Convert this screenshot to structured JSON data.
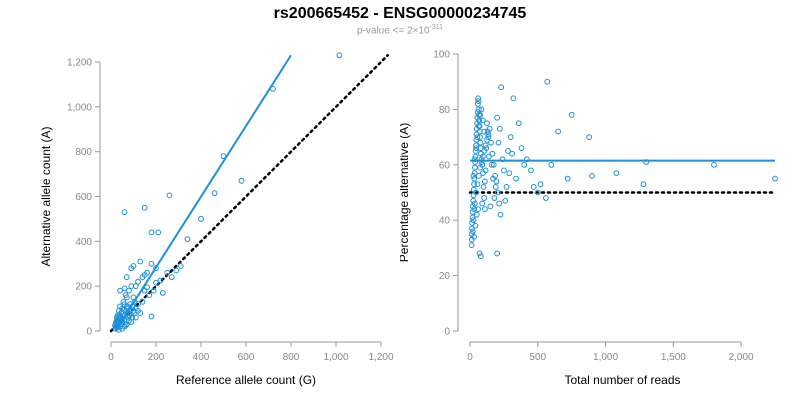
{
  "title": "rs200665452 - ENSG00000234745",
  "subtitle": {
    "prefix": "p-value <= 2×10",
    "exponent": "-311"
  },
  "colors": {
    "points": "#1e90d8",
    "fit_line": "#1e90d8",
    "reference_line": "#000000",
    "axis": "#999999"
  },
  "chart_data": [
    {
      "type": "scatter",
      "xlabel": "Reference allele count (G)",
      "ylabel": "Alternative allele count (A)",
      "xlim": [
        0,
        1200
      ],
      "ylim": [
        0,
        1200
      ],
      "xticks": [
        0,
        200,
        400,
        600,
        800,
        1000,
        1200
      ],
      "yticks": [
        0,
        200,
        400,
        600,
        800,
        1000,
        1200
      ],
      "xtick_labels": [
        "0",
        "200",
        "400",
        "600",
        "800",
        "1,000",
        "1,200"
      ],
      "ytick_labels": [
        "0",
        "200",
        "400",
        "600",
        "800",
        "1,000",
        "1,200"
      ],
      "grid": false,
      "fit_line": {
        "x": [
          20,
          800
        ],
        "y": [
          0,
          1230
        ]
      },
      "reference_line": {
        "x": [
          0,
          1230
        ],
        "y": [
          0,
          1230
        ]
      },
      "points": [
        [
          1015,
          1230
        ],
        [
          720,
          1080
        ],
        [
          500,
          780
        ],
        [
          580,
          670
        ],
        [
          460,
          615
        ],
        [
          260,
          605
        ],
        [
          400,
          500
        ],
        [
          60,
          530
        ],
        [
          150,
          550
        ],
        [
          180,
          440
        ],
        [
          210,
          440
        ],
        [
          340,
          410
        ],
        [
          290,
          270
        ],
        [
          250,
          260
        ],
        [
          220,
          225
        ],
        [
          200,
          215
        ],
        [
          200,
          280
        ],
        [
          180,
          300
        ],
        [
          130,
          310
        ],
        [
          100,
          290
        ],
        [
          90,
          280
        ],
        [
          70,
          240
        ],
        [
          150,
          250
        ],
        [
          160,
          195
        ],
        [
          180,
          65
        ],
        [
          120,
          120
        ],
        [
          110,
          100
        ],
        [
          100,
          150
        ],
        [
          80,
          180
        ],
        [
          60,
          190
        ],
        [
          40,
          180
        ],
        [
          110,
          200
        ],
        [
          140,
          240
        ],
        [
          160,
          260
        ],
        [
          120,
          220
        ],
        [
          90,
          200
        ],
        [
          70,
          150
        ],
        [
          60,
          120
        ],
        [
          50,
          100
        ],
        [
          45,
          80
        ],
        [
          40,
          60
        ],
        [
          35,
          50
        ],
        [
          30,
          40
        ],
        [
          25,
          30
        ],
        [
          20,
          20
        ],
        [
          25,
          60
        ],
        [
          30,
          70
        ],
        [
          35,
          90
        ],
        [
          40,
          110
        ],
        [
          55,
          130
        ],
        [
          65,
          160
        ],
        [
          75,
          100
        ],
        [
          85,
          120
        ],
        [
          95,
          110
        ],
        [
          105,
          130
        ],
        [
          80,
          70
        ],
        [
          60,
          50
        ],
        [
          50,
          40
        ],
        [
          45,
          30
        ],
        [
          70,
          30
        ],
        [
          90,
          40
        ],
        [
          110,
          60
        ],
        [
          130,
          80
        ],
        [
          60,
          20
        ],
        [
          75,
          80
        ],
        [
          55,
          65
        ],
        [
          38,
          72
        ],
        [
          28,
          50
        ],
        [
          22,
          38
        ],
        [
          18,
          25
        ],
        [
          20,
          10
        ],
        [
          30,
          15
        ],
        [
          40,
          20
        ],
        [
          35,
          5
        ],
        [
          50,
          10
        ],
        [
          65,
          25
        ],
        [
          80,
          45
        ],
        [
          95,
          60
        ],
        [
          120,
          90
        ],
        [
          140,
          130
        ],
        [
          170,
          160
        ],
        [
          190,
          180
        ],
        [
          230,
          170
        ],
        [
          270,
          240
        ],
        [
          310,
          290
        ],
        [
          150,
          180
        ],
        [
          100,
          90
        ],
        [
          85,
          95
        ],
        [
          72,
          110
        ],
        [
          58,
          95
        ],
        [
          48,
          85
        ],
        [
          42,
          50
        ],
        [
          33,
          62
        ],
        [
          26,
          44
        ],
        [
          24,
          18
        ],
        [
          31,
          28
        ],
        [
          36,
          36
        ],
        [
          44,
          44
        ],
        [
          52,
          55
        ],
        [
          62,
          70
        ],
        [
          78,
          60
        ],
        [
          88,
          75
        ],
        [
          102,
          80
        ]
      ]
    },
    {
      "type": "scatter",
      "xlabel": "Total number of reads",
      "ylabel": "Percentage alternative (A)",
      "xlim": [
        0,
        2250
      ],
      "ylim": [
        0,
        100
      ],
      "xticks": [
        0,
        500,
        1000,
        1500,
        2000
      ],
      "yticks": [
        0,
        20,
        40,
        60,
        80,
        100
      ],
      "xtick_labels": [
        "0",
        "500",
        "1,000",
        "1,500",
        "2,000"
      ],
      "ytick_labels": [
        "0",
        "20",
        "40",
        "60",
        "80",
        "100"
      ],
      "grid": false,
      "fit_line": {
        "x": [
          0,
          2250
        ],
        "y": [
          61.5,
          61.5
        ]
      },
      "reference_line": {
        "x": [
          0,
          2250
        ],
        "y": [
          50,
          50
        ]
      },
      "points": [
        [
          2250,
          55
        ],
        [
          1800,
          60
        ],
        [
          1300,
          61
        ],
        [
          1280,
          53
        ],
        [
          1080,
          57
        ],
        [
          900,
          56
        ],
        [
          880,
          70
        ],
        [
          750,
          78
        ],
        [
          720,
          55
        ],
        [
          650,
          72
        ],
        [
          600,
          60
        ],
        [
          570,
          90
        ],
        [
          560,
          48
        ],
        [
          520,
          53
        ],
        [
          500,
          50
        ],
        [
          470,
          52
        ],
        [
          450,
          58
        ],
        [
          420,
          62
        ],
        [
          400,
          60
        ],
        [
          380,
          66
        ],
        [
          360,
          75
        ],
        [
          340,
          55
        ],
        [
          320,
          84
        ],
        [
          310,
          64
        ],
        [
          300,
          70
        ],
        [
          290,
          57
        ],
        [
          280,
          65
        ],
        [
          270,
          52
        ],
        [
          260,
          47
        ],
        [
          250,
          58
        ],
        [
          240,
          62
        ],
        [
          230,
          88
        ],
        [
          220,
          73
        ],
        [
          210,
          68
        ],
        [
          200,
          77
        ],
        [
          190,
          52
        ],
        [
          180,
          48
        ],
        [
          170,
          55
        ],
        [
          160,
          60
        ],
        [
          150,
          45
        ],
        [
          140,
          63
        ],
        [
          135,
          70
        ],
        [
          130,
          72
        ],
        [
          125,
          75
        ],
        [
          120,
          66
        ],
        [
          115,
          58
        ],
        [
          110,
          54
        ],
        [
          105,
          48
        ],
        [
          100,
          52
        ],
        [
          95,
          57
        ],
        [
          90,
          60
        ],
        [
          85,
          62
        ],
        [
          80,
          64
        ],
        [
          78,
          66
        ],
        [
          76,
          68
        ],
        [
          74,
          70
        ],
        [
          72,
          72
        ],
        [
          70,
          74
        ],
        [
          68,
          76
        ],
        [
          66,
          78
        ],
        [
          64,
          80
        ],
        [
          62,
          83
        ],
        [
          60,
          84
        ],
        [
          58,
          82
        ],
        [
          56,
          79
        ],
        [
          54,
          77
        ],
        [
          52,
          75
        ],
        [
          50,
          73
        ],
        [
          48,
          71
        ],
        [
          46,
          69
        ],
        [
          44,
          67
        ],
        [
          42,
          65
        ],
        [
          40,
          63
        ],
        [
          38,
          61
        ],
        [
          36,
          59
        ],
        [
          34,
          57
        ],
        [
          32,
          55
        ],
        [
          30,
          53
        ],
        [
          28,
          51
        ],
        [
          26,
          49
        ],
        [
          24,
          47
        ],
        [
          22,
          45
        ],
        [
          20,
          43
        ],
        [
          18,
          41
        ],
        [
          16,
          39
        ],
        [
          15,
          37
        ],
        [
          14,
          35
        ],
        [
          13,
          33
        ],
        [
          12,
          31
        ],
        [
          20,
          36
        ],
        [
          25,
          40
        ],
        [
          30,
          44
        ],
        [
          35,
          46
        ],
        [
          45,
          50
        ],
        [
          55,
          53
        ],
        [
          65,
          56
        ],
        [
          75,
          59
        ],
        [
          85,
          61
        ],
        [
          95,
          63
        ],
        [
          105,
          65
        ],
        [
          115,
          67
        ],
        [
          125,
          69
        ],
        [
          135,
          71
        ],
        [
          145,
          73
        ],
        [
          155,
          68
        ],
        [
          165,
          64
        ],
        [
          175,
          60
        ],
        [
          185,
          56
        ],
        [
          195,
          54
        ],
        [
          205,
          50
        ],
        [
          215,
          46
        ],
        [
          225,
          42
        ],
        [
          80,
          27
        ],
        [
          70,
          28
        ],
        [
          200,
          28
        ],
        [
          60,
          44
        ],
        [
          50,
          42
        ],
        [
          40,
          38
        ],
        [
          30,
          34
        ],
        [
          25,
          56
        ],
        [
          35,
          62
        ],
        [
          45,
          66
        ],
        [
          55,
          70
        ],
        [
          65,
          74
        ],
        [
          75,
          78
        ],
        [
          85,
          80
        ],
        [
          95,
          76
        ],
        [
          105,
          72
        ],
        [
          90,
          46
        ],
        [
          110,
          44
        ]
      ]
    }
  ]
}
